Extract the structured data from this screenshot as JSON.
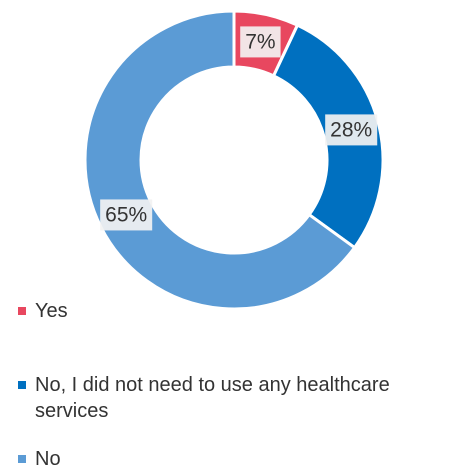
{
  "chart_data": {
    "type": "pie",
    "categories": [
      "Yes",
      "No, I did not need to use any healthcare services",
      "No"
    ],
    "values": [
      7,
      28,
      65
    ],
    "labels": [
      "7%",
      "28%",
      "65%"
    ],
    "colors": [
      "#e8475f",
      "#0070c0",
      "#5b9bd5"
    ],
    "donut": true,
    "legend_position": "bottom-left",
    "start_angle_deg": 0,
    "direction": "clockwise"
  }
}
